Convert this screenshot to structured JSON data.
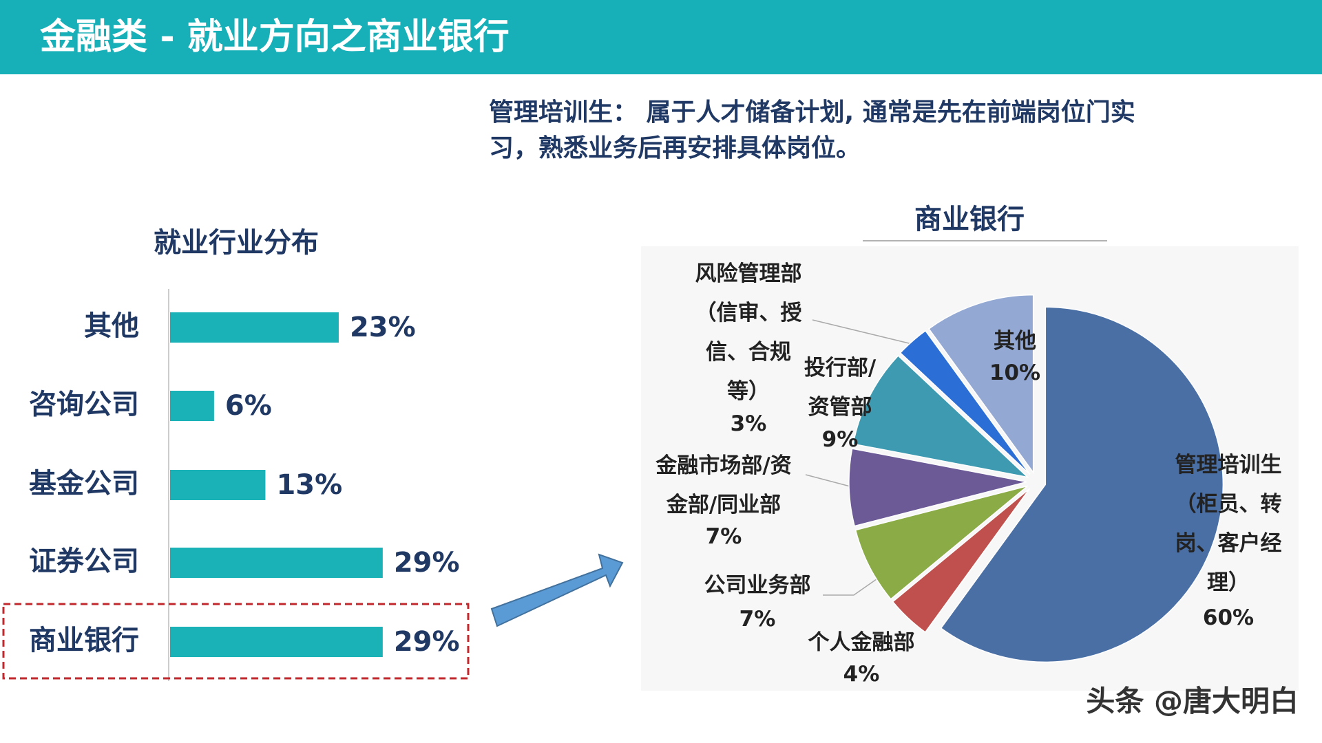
{
  "header": {
    "title": "金融类 - 就业方向之商业银行"
  },
  "description": "管理培训生： 属于人才储备计划, 通常是先在前端岗位门实习，熟悉业务后再安排具体岗位。",
  "watermark": "头条 @唐大明白",
  "chart_data": [
    {
      "type": "bar",
      "orientation": "horizontal",
      "title": "就业行业分布",
      "categories": [
        "其他",
        "咨询公司",
        "基金公司",
        "证券公司",
        "商业银行"
      ],
      "values": [
        23,
        6,
        13,
        29,
        29
      ],
      "value_labels": [
        "23%",
        "6%",
        "13%",
        "29%",
        "29%"
      ],
      "color": "#1ab2b6"
    },
    {
      "type": "pie",
      "title": "商业银行",
      "categories": [
        "管理培训生（柜员、转岗、客户经理）",
        "个人金融部",
        "公司业务部",
        "金融市场部/资金部/同业部",
        "投行部/资管部",
        "风险管理部（信审、授信、合规等）",
        "其他"
      ],
      "values": [
        60,
        4,
        7,
        7,
        9,
        3,
        10
      ],
      "value_labels": [
        "60%",
        "4%",
        "7%",
        "7%",
        "9%",
        "3%",
        "10%"
      ],
      "colors": [
        "#4a6fa5",
        "#c0504d",
        "#8aab45",
        "#6c5a96",
        "#3e9ab0",
        "#2b6fd6",
        "#93a9d3"
      ]
    }
  ]
}
